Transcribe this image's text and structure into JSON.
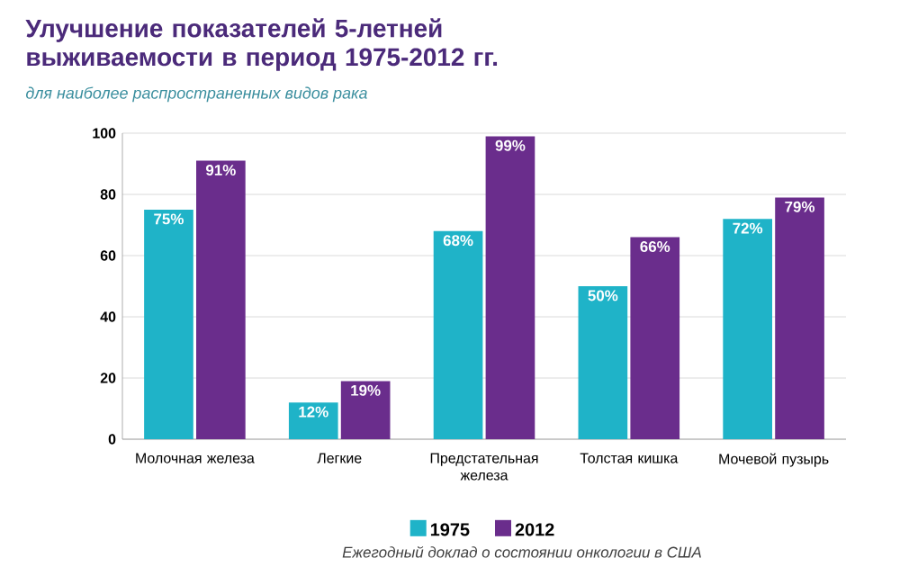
{
  "chart_data": {
    "type": "bar",
    "title": "Улучшение показателей 5-летней выживаемости в период 1975-2012 гг.",
    "subtitle": "для наиболее распространенных видов рака",
    "categories": [
      "Молочная железа",
      "Легкие",
      "Предстательная железа",
      "Толстая кишка",
      "Мочевой пузырь"
    ],
    "series": [
      {
        "name": "1975",
        "color": "#1fb3c8",
        "values": [
          75,
          12,
          68,
          50,
          72
        ],
        "value_labels": [
          "75%",
          "12%",
          "68%",
          "50%",
          "72%"
        ]
      },
      {
        "name": "2012",
        "color": "#6a2d8c",
        "values": [
          91,
          19,
          99,
          66,
          79
        ],
        "value_labels": [
          "91%",
          "19%",
          "99%",
          "66%",
          "79%"
        ]
      }
    ],
    "ylim": [
      0,
      100
    ],
    "yticks": [
      0,
      20,
      40,
      60,
      80,
      100
    ],
    "grid": "y",
    "legend": "bottom",
    "annotations": [
      "Ежегодный доклад о состоянии онкологии в США"
    ]
  }
}
